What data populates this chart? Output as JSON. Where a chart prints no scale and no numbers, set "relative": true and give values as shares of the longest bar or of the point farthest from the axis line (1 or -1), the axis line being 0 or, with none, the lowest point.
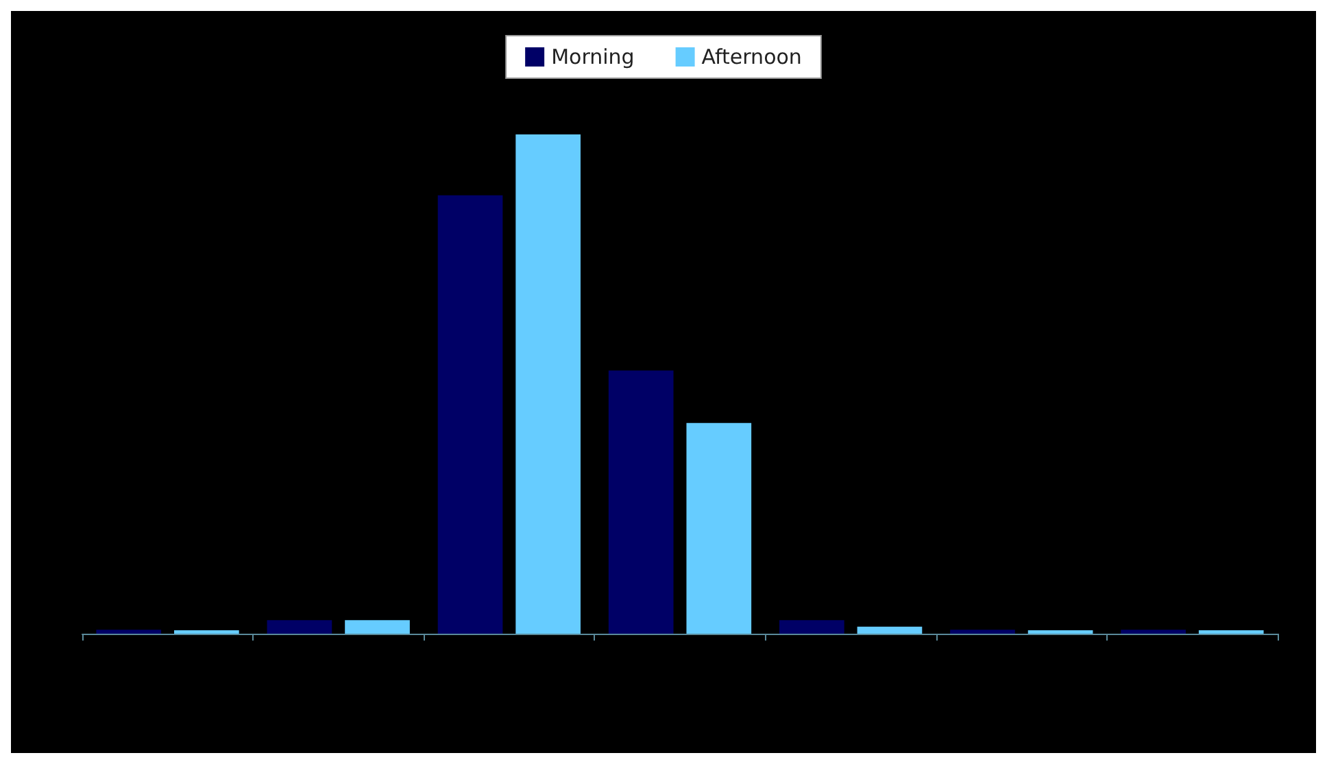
{
  "chart_data": {
    "type": "bar",
    "relative": true,
    "categories": [
      null,
      null,
      null,
      null,
      null,
      null,
      null
    ],
    "legend": "top",
    "series": [
      {
        "name": "Morning",
        "color": "#000066",
        "values": [
          0.008,
          0.027,
          0.878,
          0.527,
          0.027,
          0.008,
          0.008
        ]
      },
      {
        "name": "Afternoon",
        "color": "#66ccff",
        "values": [
          0.007,
          0.027,
          1,
          0.422,
          0.014,
          0.007,
          0.007
        ]
      }
    ]
  }
}
